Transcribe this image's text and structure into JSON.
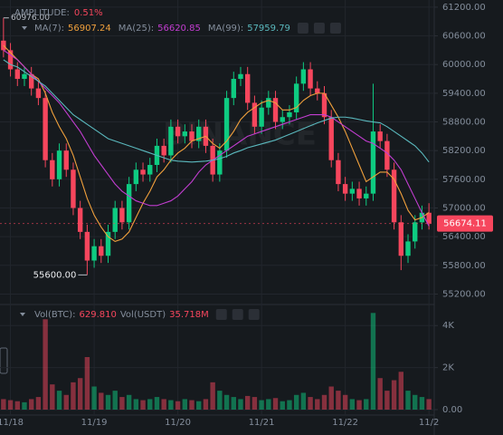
{
  "chart_data": {
    "type": "candlestick",
    "amplitude_label": "AMPLITUDE:",
    "amplitude": "0.51%",
    "watermark": "BINANCE",
    "categories": [
      null,
      "11/18",
      null,
      null,
      null,
      null,
      null,
      null,
      null,
      null,
      null,
      null,
      null,
      "11/19",
      null,
      null,
      null,
      null,
      null,
      null,
      null,
      null,
      null,
      null,
      null,
      "11/20",
      null,
      null,
      null,
      null,
      null,
      null,
      null,
      null,
      null,
      null,
      null,
      "11/21",
      null,
      null,
      null,
      null,
      null,
      null,
      null,
      null,
      null,
      null,
      null,
      "11/22",
      null,
      null,
      null,
      null,
      null,
      null,
      null,
      null,
      null,
      null,
      null,
      "11/2"
    ],
    "open": [
      60500,
      60300,
      59900,
      59700,
      59800,
      59500,
      59300,
      58000,
      57600,
      58200,
      57800,
      57000,
      56500,
      55900,
      56200,
      56000,
      56500,
      57000,
      56700,
      57500,
      57800,
      57700,
      57900,
      58300,
      58100,
      58700,
      58500,
      58600,
      58400,
      58700,
      58300,
      57700,
      58200,
      59300,
      59700,
      59800,
      59200,
      58700,
      59100,
      59300,
      58800,
      58900,
      59000,
      59600,
      59900,
      59500,
      59400,
      58900,
      58000,
      57500,
      57300,
      57400,
      57200,
      57300,
      58600,
      58400,
      57800,
      56700,
      56000,
      56300,
      56700,
      56900
    ],
    "high": [
      60976,
      60450,
      60050,
      59950,
      59950,
      59650,
      59450,
      58150,
      58350,
      58350,
      57950,
      57150,
      56650,
      56350,
      56350,
      56650,
      57150,
      57150,
      57650,
      57950,
      57950,
      58050,
      58450,
      58450,
      58850,
      58850,
      58750,
      58750,
      58850,
      58850,
      58450,
      58350,
      59450,
      59850,
      59950,
      59950,
      59350,
      59250,
      59450,
      59450,
      59050,
      59150,
      59750,
      60050,
      60050,
      59650,
      59550,
      59050,
      58150,
      57650,
      57550,
      57550,
      57450,
      59600,
      58750,
      58550,
      57950,
      56850,
      56450,
      56850,
      57050,
      57100
    ],
    "low": [
      60150,
      59750,
      59550,
      59550,
      59350,
      59150,
      57850,
      57450,
      57450,
      57650,
      56850,
      56350,
      55600,
      55750,
      55850,
      55850,
      56350,
      56550,
      56550,
      57350,
      57550,
      57550,
      57750,
      57950,
      57950,
      58350,
      58350,
      58250,
      58250,
      58150,
      57550,
      57550,
      58050,
      59150,
      59550,
      59050,
      58550,
      58550,
      58950,
      58650,
      58650,
      58750,
      58850,
      59450,
      59350,
      59250,
      58750,
      57850,
      57350,
      57150,
      57150,
      57050,
      57050,
      57150,
      58250,
      57650,
      56550,
      55700,
      55850,
      56150,
      56550,
      56550
    ],
    "close": [
      60300,
      59900,
      59700,
      59800,
      59500,
      59300,
      58000,
      57600,
      58200,
      57800,
      57000,
      56500,
      55900,
      56200,
      56000,
      56500,
      57000,
      56700,
      57500,
      57800,
      57700,
      57900,
      58300,
      58100,
      58700,
      58500,
      58600,
      58400,
      58700,
      58300,
      57700,
      58200,
      59300,
      59700,
      59800,
      59200,
      58700,
      59100,
      59300,
      58800,
      58900,
      59000,
      59600,
      59900,
      59500,
      59400,
      58900,
      58000,
      57500,
      57300,
      57400,
      57200,
      57300,
      58600,
      58400,
      57800,
      56700,
      56000,
      56300,
      56700,
      56900,
      56674.11
    ],
    "up_color": "#0ecb81",
    "down_color": "#f6465d",
    "ylim": [
      55000,
      61350
    ],
    "yticks": [
      {
        "value": 61200,
        "label": "61200.00"
      },
      {
        "value": 60600,
        "label": "60600.00"
      },
      {
        "value": 60000,
        "label": "60000.00"
      },
      {
        "value": 59400,
        "label": "59400.00"
      },
      {
        "value": 58800,
        "label": "58800.00"
      },
      {
        "value": 58200,
        "label": "58200.00"
      },
      {
        "value": 57600,
        "label": "57600.00"
      },
      {
        "value": 57000,
        "label": "57000.00"
      },
      {
        "value": 56400,
        "label": "56400.00"
      },
      {
        "value": 55800,
        "label": "55800.00"
      },
      {
        "value": 55200,
        "label": "55200.00"
      }
    ],
    "grid": true,
    "series": [
      {
        "name": "MA(7):",
        "color": "#f0a03c",
        "legend_value": 56907.24,
        "values": [
          60400,
          60250,
          60100,
          59950,
          59800,
          59700,
          59400,
          59000,
          58700,
          58450,
          58100,
          57650,
          57200,
          56850,
          56600,
          56400,
          56300,
          56350,
          56500,
          56800,
          57100,
          57350,
          57650,
          57800,
          58000,
          58150,
          58250,
          58400,
          58450,
          58500,
          58350,
          58250,
          58400,
          58600,
          58850,
          59000,
          59100,
          59200,
          59250,
          59200,
          59050,
          59050,
          59100,
          59250,
          59350,
          59400,
          59400,
          59150,
          58900,
          58600,
          58250,
          57900,
          57550,
          57650,
          57750,
          57750,
          57600,
          57300,
          56950,
          56750,
          56800,
          56907
        ]
      },
      {
        "name": "MA(25):",
        "color": "#c23dd0",
        "legend_value": 56620.85,
        "values": [
          60300,
          60200,
          60100,
          59950,
          59800,
          59650,
          59500,
          59350,
          59200,
          59000,
          58800,
          58600,
          58350,
          58100,
          57900,
          57700,
          57500,
          57350,
          57250,
          57150,
          57100,
          57050,
          57050,
          57100,
          57150,
          57250,
          57400,
          57550,
          57750,
          57900,
          58000,
          58100,
          58200,
          58300,
          58400,
          58500,
          58550,
          58600,
          58650,
          58700,
          58750,
          58800,
          58850,
          58900,
          58950,
          58950,
          58950,
          58900,
          58800,
          58700,
          58600,
          58500,
          58400,
          58350,
          58250,
          58150,
          58000,
          57800,
          57500,
          57200,
          56900,
          56621
        ]
      },
      {
        "name": "MA(99):",
        "color": "#5ab8bd",
        "legend_value": 57959.79,
        "values": [
          60100,
          60000,
          59950,
          59850,
          59750,
          59650,
          59550,
          59400,
          59250,
          59100,
          58950,
          58850,
          58750,
          58650,
          58550,
          58450,
          58400,
          58350,
          58300,
          58250,
          58200,
          58150,
          58100,
          58050,
          58000,
          57980,
          57970,
          57960,
          57970,
          57980,
          58000,
          58030,
          58080,
          58150,
          58200,
          58260,
          58300,
          58340,
          58380,
          58420,
          58480,
          58540,
          58600,
          58660,
          58720,
          58780,
          58830,
          58880,
          58900,
          58900,
          58880,
          58850,
          58820,
          58800,
          58780,
          58700,
          58600,
          58500,
          58400,
          58300,
          58150,
          57960
        ]
      }
    ],
    "last_price": 56674.11,
    "high_marker": {
      "value": 60976,
      "label": "60976.00"
    },
    "low_marker": {
      "value": 55600,
      "label": "55600.00"
    },
    "volume": {
      "legend": [
        {
          "label": "Vol(BTC):",
          "value": "629.810"
        },
        {
          "label": "Vol(USDT)",
          "value": "35.718M"
        }
      ],
      "values": [
        500,
        450,
        400,
        350,
        500,
        600,
        4300,
        1200,
        900,
        700,
        1300,
        1500,
        2500,
        1100,
        800,
        700,
        900,
        600,
        700,
        500,
        450,
        500,
        600,
        500,
        450,
        400,
        500,
        450,
        400,
        500,
        1300,
        900,
        700,
        600,
        500,
        650,
        600,
        450,
        500,
        550,
        400,
        450,
        700,
        800,
        600,
        500,
        700,
        1100,
        900,
        700,
        500,
        450,
        500,
        4600,
        1500,
        900,
        1400,
        1800,
        900,
        700,
        600,
        500
      ],
      "ylim": [
        0,
        4700
      ],
      "yticks": [
        {
          "value": 4000,
          "label": "4K"
        },
        {
          "value": 2000,
          "label": "2K"
        },
        {
          "value": 0,
          "label": "0.00"
        }
      ]
    }
  }
}
